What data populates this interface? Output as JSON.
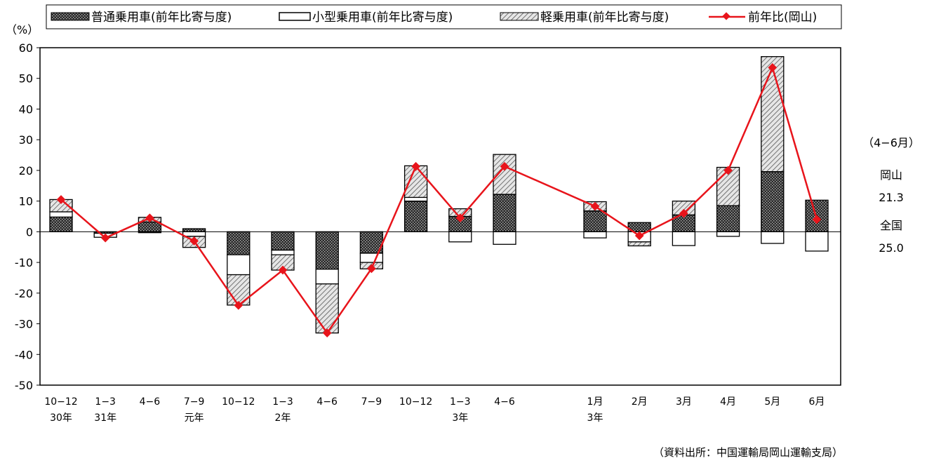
{
  "chart_data": {
    "type": "bar",
    "stacked": true,
    "ylabel": "（%）",
    "ylim": [
      -50,
      60
    ],
    "yticks": [
      60,
      50,
      40,
      30,
      20,
      10,
      0,
      -10,
      -20,
      -30,
      -40,
      -50
    ],
    "grid": false,
    "legend_position": "top",
    "categories": [
      {
        "line1": "10−12",
        "line2": "30年"
      },
      {
        "line1": "1−3",
        "line2": "31年"
      },
      {
        "line1": "4−6",
        "line2": ""
      },
      {
        "line1": "7−9",
        "line2": "元年"
      },
      {
        "line1": "10−12",
        "line2": ""
      },
      {
        "line1": "1−3",
        "line2": "2年"
      },
      {
        "line1": "4−6",
        "line2": ""
      },
      {
        "line1": "7−9",
        "line2": ""
      },
      {
        "line1": "10−12",
        "line2": ""
      },
      {
        "line1": "1−3",
        "line2": "3年"
      },
      {
        "line1": "4−6",
        "line2": ""
      },
      {
        "line1": "1月",
        "line2": "3年"
      },
      {
        "line1": "2月",
        "line2": ""
      },
      {
        "line1": "3月",
        "line2": ""
      },
      {
        "line1": "4月",
        "line2": ""
      },
      {
        "line1": "5月",
        "line2": ""
      },
      {
        "line1": "6月",
        "line2": ""
      }
    ],
    "series": [
      {
        "name": "普通乗用車(前年比寄与度)",
        "kind": "bar",
        "pattern": "dots",
        "values": [
          4.8,
          -0.5,
          3.2,
          1.0,
          -7.5,
          -6.0,
          -12.2,
          -7.0,
          10.0,
          5.0,
          12.2,
          6.8,
          3.0,
          5.5,
          8.5,
          19.6,
          10.3
        ]
      },
      {
        "name": "小型乗用車(前年比寄与度)",
        "kind": "bar",
        "pattern": "white",
        "values": [
          1.7,
          -1.3,
          -0.3,
          -1.5,
          -6.5,
          -1.5,
          -4.8,
          -3.0,
          1.2,
          -3.3,
          -4.1,
          -2.0,
          -3.3,
          -4.5,
          -1.5,
          -3.8,
          -6.3
        ]
      },
      {
        "name": "軽乗用車(前年比寄与度)",
        "kind": "bar",
        "pattern": "hatch",
        "values": [
          4.0,
          0,
          1.5,
          -3.6,
          -9.9,
          -5.0,
          -16.0,
          -2.1,
          10.3,
          2.5,
          13.0,
          3.0,
          -1.3,
          4.5,
          12.5,
          37.5,
          0
        ]
      },
      {
        "name": "前年比(岡山)",
        "kind": "line",
        "color": "#e8141b",
        "values": [
          10.5,
          -2.0,
          4.5,
          -3.0,
          -24.0,
          -12.5,
          -33.0,
          -12.0,
          21.3,
          4.5,
          21.3,
          8.3,
          -1.3,
          6.0,
          20.0,
          53.5,
          4.0
        ]
      }
    ]
  },
  "side_panel": {
    "period": "（4−6月）",
    "label1": "岡山",
    "value1": "21.3",
    "label2": "全国",
    "value2": "25.0"
  },
  "source": "（資料出所：中国運輸局岡山運輸支局）"
}
